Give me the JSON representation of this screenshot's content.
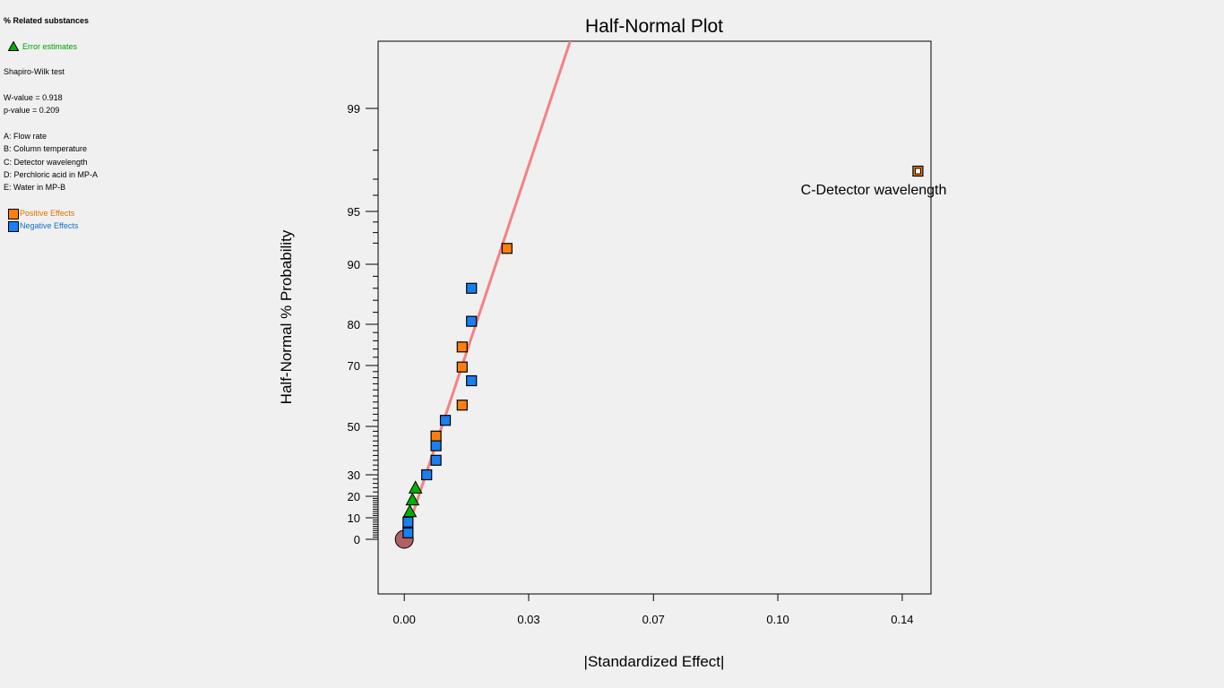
{
  "legend": {
    "response": "% Related substances",
    "error_label": "Error estimates",
    "test_name": "Shapiro-Wilk test",
    "w_value": "W-value = 0.918",
    "p_value": "p-value = 0.209",
    "factors": [
      "A: Flow rate",
      "B: Column temperature",
      "C: Detector wavelength",
      "D: Perchloric acid in MP-A",
      "E: Water in MP-B"
    ],
    "positive_label": "Positive Effects",
    "negative_label": "Negative Effects"
  },
  "colors": {
    "positive": "#ff7f0e",
    "negative": "#1a7ff0",
    "error": "#00b000",
    "fit_line": "#f88080",
    "origin": "#b06060",
    "positive_text": "#e07000",
    "negative_text": "#1070d0"
  },
  "chart_data": {
    "type": "scatter",
    "title": "Half-Normal Plot",
    "xlabel": "|Standardized Effect|",
    "ylabel": "Half-Normal % Probability",
    "x_ticks": [
      "0.00",
      "0.03",
      "0.07",
      "0.10",
      "0.14"
    ],
    "y_ticks": [
      "0",
      "10",
      "20",
      "30",
      "50",
      "70",
      "80",
      "90",
      "95",
      "99"
    ],
    "xlim": [
      -0.007,
      0.141
    ],
    "y_scale": "half-normal probability",
    "fit_line": {
      "from": [
        0.0,
        0
      ],
      "slope_note": "half-normal fit through error estimates"
    },
    "origin_point": {
      "x": 0.0,
      "y": 0
    },
    "series": [
      {
        "name": "Error estimates",
        "marker": "triangle",
        "points": [
          {
            "x": 0.0015,
            "y": 13
          },
          {
            "x": 0.0022,
            "y": 18.5
          },
          {
            "x": 0.003,
            "y": 24
          }
        ]
      },
      {
        "name": "Positive Effects",
        "marker": "square",
        "points": [
          {
            "x": 0.0085,
            "y": 46
          },
          {
            "x": 0.0155,
            "y": 57
          },
          {
            "x": 0.0155,
            "y": 69.5
          },
          {
            "x": 0.0155,
            "y": 74.5
          },
          {
            "x": 0.0275,
            "y": 91.5
          },
          {
            "x": 0.1375,
            "y": 97.5,
            "label": "C-Detector wavelength"
          }
        ]
      },
      {
        "name": "Negative Effects",
        "marker": "square",
        "points": [
          {
            "x": 0.001,
            "y": 3
          },
          {
            "x": 0.001,
            "y": 8
          },
          {
            "x": 0.006,
            "y": 30
          },
          {
            "x": 0.0085,
            "y": 36
          },
          {
            "x": 0.0085,
            "y": 42
          },
          {
            "x": 0.011,
            "y": 52
          },
          {
            "x": 0.018,
            "y": 65
          },
          {
            "x": 0.018,
            "y": 80.5
          },
          {
            "x": 0.018,
            "y": 86
          }
        ]
      }
    ]
  }
}
